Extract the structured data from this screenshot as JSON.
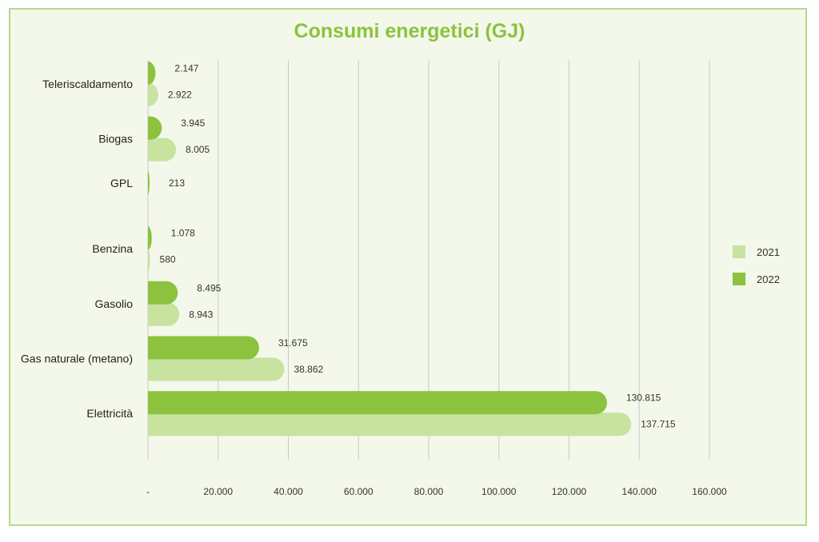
{
  "chart_data": {
    "type": "bar",
    "orientation": "horizontal",
    "title": "Consumi energetici (GJ)",
    "categories": [
      "Teleriscaldamento",
      "Biogas",
      "GPL",
      "Benzina",
      "Gasolio",
      "Gas naturale (metano)",
      "Elettricità"
    ],
    "series": [
      {
        "name": "2022",
        "color": "#8cc23e",
        "values": [
          2147,
          3945,
          213,
          1078,
          8495,
          31675,
          130815
        ],
        "labels": [
          "2.147",
          "3.945",
          "213",
          "1.078",
          "8.495",
          "31.675",
          "130.815"
        ]
      },
      {
        "name": "2021",
        "color": "#c8e2a0",
        "values": [
          2922,
          8005,
          null,
          580,
          8943,
          38862,
          137715
        ],
        "labels": [
          "2.922",
          "8.005",
          "",
          "580",
          "8.943",
          "38.862",
          "137.715"
        ]
      }
    ],
    "legend": {
      "position": "right",
      "order": [
        "2021",
        "2022"
      ]
    },
    "xlim": [
      0,
      160000
    ],
    "xticks": [
      0,
      20000,
      40000,
      60000,
      80000,
      100000,
      120000,
      140000,
      160000
    ],
    "xtick_labels": [
      "-",
      "20.000",
      "40.000",
      "60.000",
      "80.000",
      "100.000",
      "120.000",
      "140.000",
      "160.000"
    ],
    "grid": true,
    "colors": {
      "title": "#8cc23e",
      "background": "#f3f8ea",
      "border": "#b6d889",
      "grid": "#c9c9c9"
    }
  }
}
